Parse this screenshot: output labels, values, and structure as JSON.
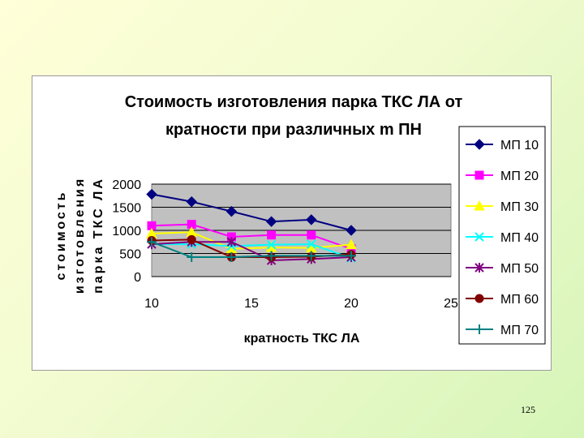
{
  "page_number": "125",
  "chart_data": {
    "type": "line",
    "title_lines": [
      "Стоимость изготовления парка ТКС ЛА от",
      "кратности при различных m ПН"
    ],
    "xlabel": "кратность ТКС ЛА",
    "ylabel_lines": [
      "стоимость",
      "изготовления",
      "парка ТКС ЛА"
    ],
    "xlim": [
      10,
      25
    ],
    "ylim": [
      0,
      2000
    ],
    "x_ticks": [
      10,
      15,
      20,
      25
    ],
    "y_ticks": [
      0,
      500,
      1000,
      1500,
      2000
    ],
    "plot_background": "#c0c0c0",
    "grid": true,
    "legend_position": "right",
    "series": [
      {
        "name": "МП 10",
        "color": "#000080",
        "marker": "diamond",
        "x": [
          10,
          12,
          14,
          16,
          18,
          20
        ],
        "values": [
          1780,
          1620,
          1410,
          1190,
          1230,
          1000
        ]
      },
      {
        "name": "МП 20",
        "color": "#ff00ff",
        "marker": "square",
        "x": [
          10,
          12,
          14,
          16,
          18,
          20
        ],
        "values": [
          1100,
          1130,
          860,
          900,
          900,
          600
        ]
      },
      {
        "name": "МП 30",
        "color": "#ffff00",
        "marker": "triangle",
        "x": [
          10,
          12,
          14,
          16,
          18,
          20
        ],
        "values": [
          930,
          960,
          600,
          630,
          620,
          690
        ]
      },
      {
        "name": "МП 40",
        "color": "#00ffff",
        "marker": "x",
        "x": [
          10,
          12,
          14,
          16,
          18,
          20
        ],
        "values": [
          700,
          700,
          660,
          690,
          700,
          400
        ]
      },
      {
        "name": "МП 50",
        "color": "#800080",
        "marker": "asterisk",
        "x": [
          10,
          12,
          14,
          16,
          18,
          20
        ],
        "values": [
          700,
          750,
          750,
          350,
          380,
          420
        ]
      },
      {
        "name": "МП 60",
        "color": "#800000",
        "marker": "circle",
        "x": [
          10,
          12,
          14,
          16,
          18,
          20
        ],
        "values": [
          780,
          800,
          420,
          420,
          430,
          480
        ]
      },
      {
        "name": "МП 70",
        "color": "#008080",
        "marker": "plus",
        "x": [
          10,
          12,
          14,
          16,
          18,
          20
        ],
        "values": [
          750,
          420,
          420,
          450,
          450,
          450
        ]
      }
    ]
  }
}
